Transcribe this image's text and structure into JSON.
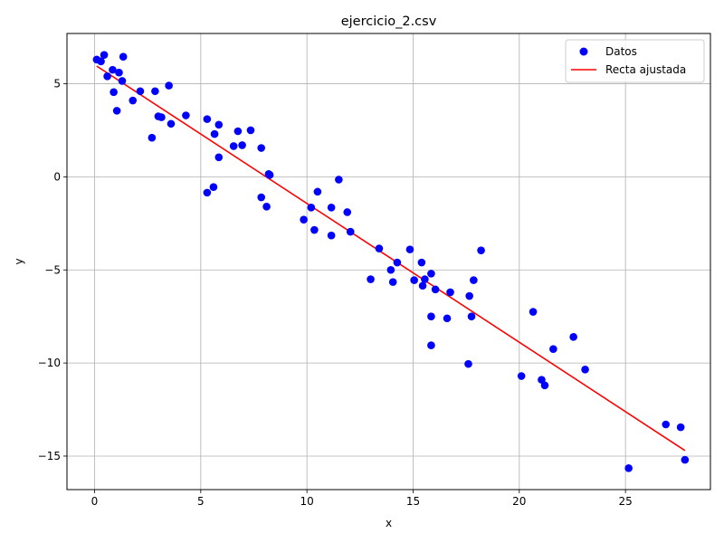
{
  "chart_data": {
    "type": "scatter",
    "title": "ejercicio_2.csv",
    "xlabel": "x",
    "ylabel": "y",
    "xlim": [
      -1.3,
      29.0
    ],
    "ylim": [
      -16.8,
      7.7
    ],
    "xticks": [
      0,
      5,
      10,
      15,
      20,
      25
    ],
    "yticks": [
      -15,
      -10,
      -5,
      0,
      5
    ],
    "ytick_labels": [
      "−15",
      "−10",
      "−5",
      "0",
      "5"
    ],
    "grid": true,
    "legend_position": "top-right",
    "series": [
      {
        "name": "Datos",
        "kind": "scatter",
        "color": "#0000ff",
        "points": [
          [
            0.1,
            6.3
          ],
          [
            0.3,
            6.2
          ],
          [
            0.45,
            6.55
          ],
          [
            0.6,
            5.4
          ],
          [
            0.85,
            5.75
          ],
          [
            0.9,
            4.55
          ],
          [
            1.05,
            3.55
          ],
          [
            1.15,
            5.6
          ],
          [
            1.3,
            5.15
          ],
          [
            1.35,
            6.45
          ],
          [
            1.8,
            4.1
          ],
          [
            2.15,
            4.6
          ],
          [
            2.7,
            2.1
          ],
          [
            2.85,
            4.6
          ],
          [
            3.0,
            3.25
          ],
          [
            3.15,
            3.2
          ],
          [
            3.5,
            4.9
          ],
          [
            3.6,
            2.85
          ],
          [
            4.3,
            3.3
          ],
          [
            5.3,
            3.1
          ],
          [
            5.3,
            -0.85
          ],
          [
            5.6,
            -0.55
          ],
          [
            5.65,
            2.3
          ],
          [
            5.85,
            2.8
          ],
          [
            5.85,
            1.05
          ],
          [
            6.55,
            1.65
          ],
          [
            6.75,
            2.45
          ],
          [
            6.95,
            1.7
          ],
          [
            7.35,
            2.5
          ],
          [
            7.85,
            1.55
          ],
          [
            7.85,
            -1.1
          ],
          [
            8.1,
            -1.6
          ],
          [
            8.2,
            0.15
          ],
          [
            8.25,
            0.1
          ],
          [
            9.85,
            -2.3
          ],
          [
            10.2,
            -1.65
          ],
          [
            10.35,
            -2.85
          ],
          [
            10.5,
            -0.8
          ],
          [
            11.15,
            -1.65
          ],
          [
            11.15,
            -3.15
          ],
          [
            11.5,
            -0.15
          ],
          [
            11.9,
            -1.9
          ],
          [
            12.05,
            -2.95
          ],
          [
            13.0,
            -5.5
          ],
          [
            13.4,
            -3.85
          ],
          [
            13.95,
            -5.0
          ],
          [
            14.05,
            -5.65
          ],
          [
            14.25,
            -4.6
          ],
          [
            14.85,
            -3.9
          ],
          [
            15.05,
            -5.55
          ],
          [
            15.4,
            -4.6
          ],
          [
            15.45,
            -5.85
          ],
          [
            15.55,
            -5.5
          ],
          [
            15.85,
            -5.2
          ],
          [
            15.85,
            -7.5
          ],
          [
            15.85,
            -9.05
          ],
          [
            16.05,
            -6.05
          ],
          [
            16.6,
            -7.6
          ],
          [
            16.75,
            -6.2
          ],
          [
            17.6,
            -10.05
          ],
          [
            17.65,
            -6.4
          ],
          [
            17.75,
            -7.5
          ],
          [
            17.85,
            -5.55
          ],
          [
            18.2,
            -3.95
          ],
          [
            20.1,
            -10.7
          ],
          [
            20.65,
            -7.25
          ],
          [
            21.05,
            -10.9
          ],
          [
            21.2,
            -11.2
          ],
          [
            21.6,
            -9.25
          ],
          [
            22.55,
            -8.6
          ],
          [
            23.1,
            -10.35
          ],
          [
            25.15,
            -15.65
          ],
          [
            26.9,
            -13.3
          ],
          [
            27.6,
            -13.45
          ],
          [
            27.8,
            -15.2
          ]
        ]
      },
      {
        "name": "Recta ajustada",
        "kind": "line",
        "color": "#ff0000",
        "x": [
          0.1,
          27.8
        ],
        "y": [
          5.95,
          -14.7
        ]
      }
    ]
  }
}
